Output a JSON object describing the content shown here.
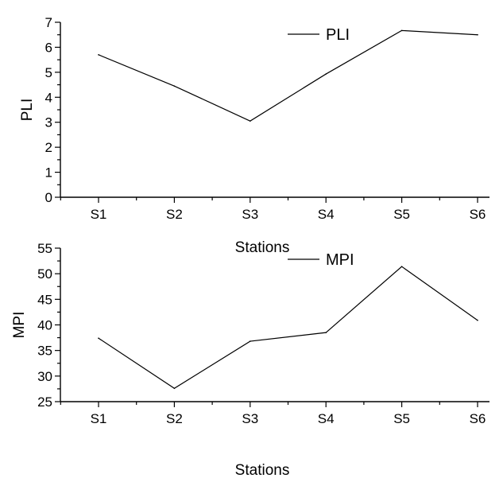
{
  "chart_data": [
    {
      "type": "line",
      "categories": [
        "S1",
        "S2",
        "S3",
        "S4",
        "S5",
        "S6"
      ],
      "series": [
        {
          "name": "PLI",
          "values": [
            5.7,
            4.45,
            3.05,
            4.93,
            6.67,
            6.5
          ]
        }
      ],
      "xlabel": "Stations",
      "ylabel": "PLI",
      "ylim": [
        0,
        7
      ],
      "yticks": [
        0,
        1,
        2,
        3,
        4,
        5,
        6,
        7
      ],
      "legend": "top-right",
      "grid": false
    },
    {
      "type": "line",
      "categories": [
        "S1",
        "S2",
        "S3",
        "S4",
        "S5",
        "S6"
      ],
      "series": [
        {
          "name": "MPI",
          "values": [
            37.4,
            27.6,
            36.8,
            38.5,
            51.4,
            40.9
          ]
        }
      ],
      "xlabel": "Stations",
      "ylabel": "MPI",
      "ylim": [
        25,
        55
      ],
      "yticks": [
        25,
        30,
        35,
        40,
        45,
        50,
        55
      ],
      "legend": "top-right",
      "grid": false
    }
  ]
}
